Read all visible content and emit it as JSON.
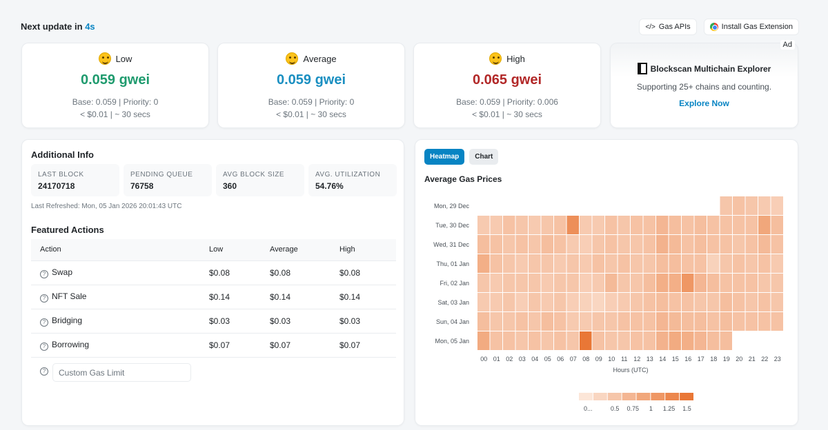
{
  "header": {
    "next_update_label": "Next update in",
    "countdown": "4s"
  },
  "links": {
    "gas_apis": "Gas APIs",
    "install_extension": "Install Gas Extension"
  },
  "gas": {
    "low": {
      "title": "Low",
      "value": "0.059 gwei",
      "base": "Base: 0.059 | Priority: 0",
      "cost": "< $0.01 | ~ 30 secs",
      "color": "#1f9b6e"
    },
    "average": {
      "title": "Average",
      "value": "0.059 gwei",
      "base": "Base: 0.059 | Priority: 0",
      "cost": "< $0.01 | ~ 30 secs",
      "color": "#1a8fc1"
    },
    "high": {
      "title": "High",
      "value": "0.065 gwei",
      "base": "Base: 0.059 | Priority: 0.006",
      "cost": "< $0.01 | ~ 30 secs",
      "color": "#b22828"
    }
  },
  "ad": {
    "tag": "Ad",
    "title": "Blockscan Multichain Explorer",
    "subtitle": "Supporting 25+ chains and counting.",
    "cta": "Explore Now"
  },
  "info": {
    "title": "Additional Info",
    "stats": [
      {
        "label": "LAST BLOCK",
        "value": "24170718"
      },
      {
        "label": "PENDING QUEUE",
        "value": "76758"
      },
      {
        "label": "AVG BLOCK SIZE",
        "value": "360"
      },
      {
        "label": "AVG. UTILIZATION",
        "value": "54.76%"
      }
    ],
    "refreshed": "Last Refreshed: Mon, 05 Jan 2026 20:01:43 UTC"
  },
  "featured": {
    "title": "Featured Actions",
    "headers": [
      "Action",
      "Low",
      "Average",
      "High"
    ],
    "rows": [
      [
        "Swap",
        "$0.08",
        "$0.08",
        "$0.08"
      ],
      [
        "NFT Sale",
        "$0.14",
        "$0.14",
        "$0.14"
      ],
      [
        "Bridging",
        "$0.03",
        "$0.03",
        "$0.03"
      ],
      [
        "Borrowing",
        "$0.07",
        "$0.07",
        "$0.07"
      ]
    ],
    "custom_placeholder": "Custom Gas Limit"
  },
  "heatmap": {
    "tab_heatmap": "Heatmap",
    "tab_chart": "Chart",
    "title": "Average Gas Prices"
  },
  "chart_data": {
    "type": "heatmap",
    "title": "Average Gas Prices",
    "xlabel": "Hours (UTC)",
    "ylabel": "",
    "x": [
      "00",
      "01",
      "02",
      "03",
      "04",
      "05",
      "06",
      "07",
      "08",
      "09",
      "10",
      "11",
      "12",
      "13",
      "14",
      "15",
      "16",
      "17",
      "18",
      "19",
      "20",
      "21",
      "22",
      "23"
    ],
    "y": [
      "Mon, 29 Dec",
      "Tue, 30 Dec",
      "Wed, 31 Dec",
      "Thu, 01 Jan",
      "Fri, 02 Jan",
      "Sat, 03 Jan",
      "Sun, 04 Jan",
      "Mon, 05 Jan"
    ],
    "colorscale_ticks": [
      "0...",
      "0.5",
      "0.75",
      "1",
      "1.25",
      "1.5"
    ],
    "colorscale_range": [
      0,
      1.6
    ],
    "values": [
      [
        null,
        null,
        null,
        null,
        null,
        null,
        null,
        null,
        null,
        null,
        null,
        null,
        null,
        null,
        null,
        null,
        null,
        null,
        null,
        0.5,
        0.55,
        0.5,
        0.45,
        0.4
      ],
      [
        0.45,
        0.45,
        0.55,
        0.5,
        0.45,
        0.5,
        0.55,
        1.2,
        0.45,
        0.45,
        0.55,
        0.5,
        0.55,
        0.55,
        0.7,
        0.6,
        0.55,
        0.6,
        0.55,
        0.55,
        0.55,
        0.55,
        0.9,
        0.6
      ],
      [
        0.6,
        0.55,
        0.5,
        0.55,
        0.5,
        0.6,
        0.55,
        0.45,
        0.4,
        0.5,
        0.55,
        0.5,
        0.5,
        0.55,
        0.75,
        0.65,
        0.55,
        0.6,
        0.55,
        0.55,
        0.5,
        0.55,
        0.65,
        0.55
      ],
      [
        0.8,
        0.55,
        0.5,
        0.45,
        0.5,
        0.5,
        0.45,
        0.5,
        0.45,
        0.55,
        0.5,
        0.55,
        0.5,
        0.5,
        0.6,
        0.6,
        0.55,
        0.55,
        0.35,
        0.5,
        0.55,
        0.5,
        0.55,
        0.45
      ],
      [
        0.5,
        0.45,
        0.5,
        0.5,
        0.5,
        0.45,
        0.5,
        0.5,
        0.4,
        0.45,
        0.65,
        0.5,
        0.5,
        0.6,
        0.8,
        0.8,
        1.1,
        0.7,
        0.6,
        0.55,
        0.55,
        0.55,
        0.5,
        0.5
      ],
      [
        0.45,
        0.45,
        0.5,
        0.4,
        0.5,
        0.45,
        0.5,
        0.4,
        0.35,
        0.3,
        0.4,
        0.45,
        0.5,
        0.55,
        0.6,
        0.55,
        0.55,
        0.5,
        0.5,
        0.6,
        0.55,
        0.5,
        0.55,
        0.5
      ],
      [
        0.6,
        0.5,
        0.5,
        0.55,
        0.5,
        0.6,
        0.55,
        0.45,
        0.45,
        0.5,
        0.5,
        0.55,
        0.55,
        0.55,
        0.7,
        0.65,
        0.6,
        0.6,
        0.55,
        0.6,
        0.55,
        0.55,
        0.55,
        0.55
      ],
      [
        0.85,
        0.55,
        0.55,
        0.5,
        0.55,
        0.5,
        0.55,
        0.5,
        1.5,
        0.55,
        0.5,
        0.5,
        0.55,
        0.55,
        0.75,
        0.85,
        0.8,
        0.7,
        0.6,
        0.6,
        null,
        null,
        null,
        null
      ]
    ]
  }
}
